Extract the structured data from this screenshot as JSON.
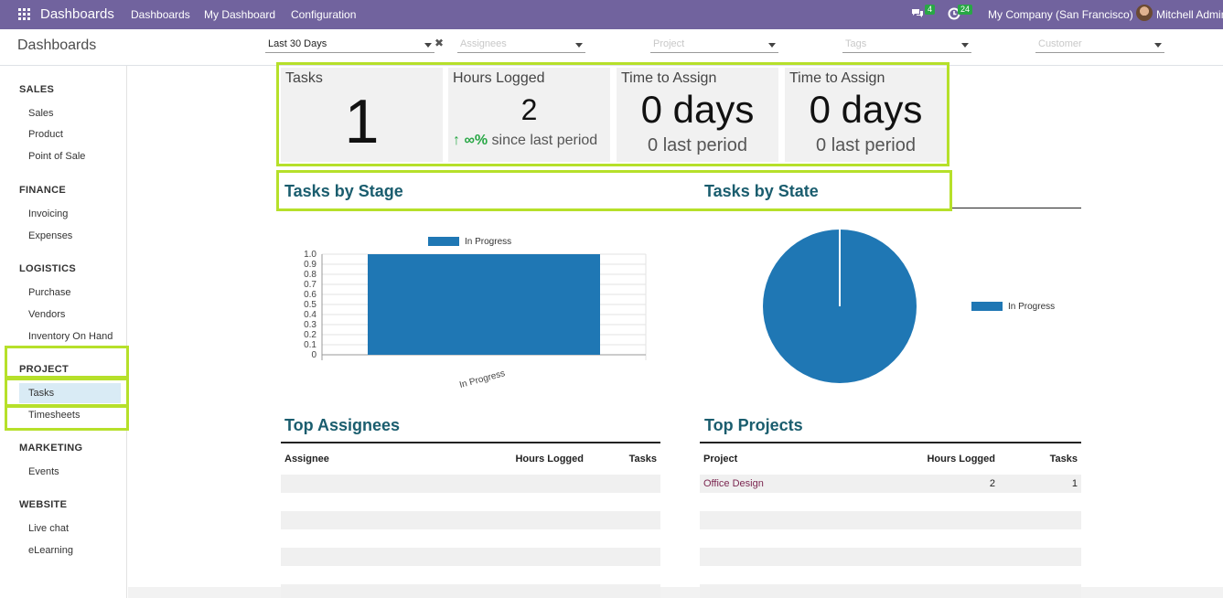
{
  "nav": {
    "brand": "Dashboards",
    "links": [
      "Dashboards",
      "My Dashboard",
      "Configuration"
    ],
    "messages_count": "4",
    "activities_count": "24",
    "company": "My Company (San Francisco)",
    "user": "Mitchell Admin"
  },
  "control": {
    "title": "Dashboards",
    "period": "Last 30 Days",
    "filters": [
      "Assignees",
      "Project",
      "Tags",
      "Customer"
    ]
  },
  "sidebar": {
    "sections": [
      {
        "title": "SALES",
        "items": [
          "Sales",
          "Product",
          "Point of Sale"
        ]
      },
      {
        "title": "FINANCE",
        "items": [
          "Invoicing",
          "Expenses"
        ]
      },
      {
        "title": "LOGISTICS",
        "items": [
          "Purchase",
          "Vendors",
          "Inventory On Hand"
        ]
      },
      {
        "title": "PROJECT",
        "items": [
          "Tasks",
          "Timesheets"
        ]
      },
      {
        "title": "MARKETING",
        "items": [
          "Events"
        ]
      },
      {
        "title": "WEBSITE",
        "items": [
          "Live chat",
          "eLearning"
        ]
      }
    ],
    "active_item": "Tasks"
  },
  "kpis": [
    {
      "label": "Tasks",
      "value": "1"
    },
    {
      "label": "Hours Logged",
      "value": "2",
      "trend_arrow": "↑",
      "trend_pct": "∞%",
      "trend_text": "since last period"
    },
    {
      "label": "Time to Assign",
      "value": "0 days",
      "previous": "0 last period"
    },
    {
      "label": "Time to Assign",
      "value": "0 days",
      "previous": "0 last period"
    }
  ],
  "charts": {
    "stage_title": "Tasks by Stage",
    "state_title": "Tasks by State"
  },
  "chart_data": [
    {
      "type": "bar",
      "categories": [
        "In Progress"
      ],
      "series": [
        {
          "name": "In Progress",
          "values": [
            1
          ]
        }
      ],
      "ylim": [
        0,
        1
      ],
      "yticks": [
        "1.0",
        "0.9",
        "0.8",
        "0.7",
        "0.6",
        "0.5",
        "0.4",
        "0.3",
        "0.2",
        "0.1",
        "0"
      ],
      "legend": "top",
      "grid": true,
      "color": "#1f77b4"
    },
    {
      "type": "pie",
      "labels": [
        "In Progress"
      ],
      "values": [
        1
      ],
      "legend": "right",
      "color": "#1f77b4"
    }
  ],
  "assignees": {
    "title": "Top Assignees",
    "headers": [
      "Assignee",
      "Hours Logged",
      "Tasks"
    ]
  },
  "projects": {
    "title": "Top Projects",
    "headers": [
      "Project",
      "Hours Logged",
      "Tasks"
    ],
    "rows": [
      {
        "project": "Office Design",
        "hours": "2",
        "tasks": "1"
      }
    ]
  },
  "colors": {
    "nav": "#71639e",
    "accent": "#b6e02a",
    "title": "#1a5d6e",
    "bar": "#1f77b4",
    "positive": "#28a745"
  }
}
